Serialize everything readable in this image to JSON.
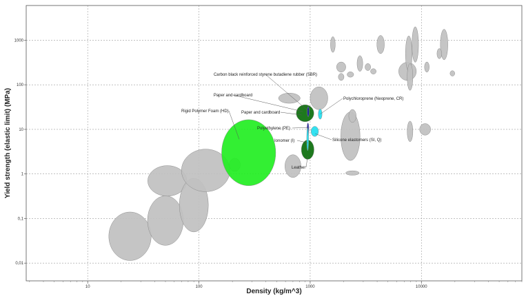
{
  "chart_data": {
    "type": "scatter",
    "title": "",
    "xlabel": "Density (kg/m^3)",
    "ylabel": "Yield strength (elastic limit) (MPa)",
    "x_scale": "log",
    "y_scale": "log",
    "xlim": [
      2.8,
      80000
    ],
    "ylim": [
      0.004,
      6000
    ],
    "x_ticks": [
      10,
      100,
      1000,
      10000
    ],
    "x_tick_labels": [
      "10",
      "100",
      "1000",
      "10000"
    ],
    "y_ticks": [
      0.01,
      0.1,
      1,
      10,
      100,
      1000
    ],
    "y_tick_labels": [
      "0,01",
      "0,1",
      "1",
      "10",
      "100",
      "1000"
    ],
    "grid": true,
    "series": [
      {
        "color": "#c0c0c0",
        "points": [
          {
            "x": 24,
            "y": 0.04,
            "dx": 1.55,
            "dy": 3.5
          },
          {
            "x": 50,
            "y": 0.09,
            "dx": 1.45,
            "dy": 3.6
          },
          {
            "x": 52,
            "y": 0.7,
            "dx": 1.5,
            "dy": 2.2
          },
          {
            "x": 90,
            "y": 0.2,
            "dx": 1.35,
            "dy": 4.0
          },
          {
            "x": 115,
            "y": 1.2,
            "dx": 1.65,
            "dy": 3.0
          },
          {
            "x": 210,
            "y": 1.6,
            "dx": 1.12,
            "dy": 1.4
          },
          {
            "x": 700,
            "y": 1.5,
            "dx": 1.18,
            "dy": 1.8
          },
          {
            "x": 650,
            "y": 50,
            "dx": 1.25,
            "dy": 1.3
          },
          {
            "x": 1200,
            "y": 50,
            "dx": 1.2,
            "dy": 1.8
          },
          {
            "x": 2300,
            "y": 7,
            "dx": 1.22,
            "dy": 3.5
          },
          {
            "x": 2400,
            "y": 1.05,
            "dx": 1.15,
            "dy": 1.12
          },
          {
            "x": 2400,
            "y": 20,
            "dx": 1.08,
            "dy": 1.4
          },
          {
            "x": 1900,
            "y": 250,
            "dx": 1.1,
            "dy": 1.3
          },
          {
            "x": 1900,
            "y": 150,
            "dx": 1.06,
            "dy": 1.2
          },
          {
            "x": 2300,
            "y": 170,
            "dx": 1.07,
            "dy": 1.15
          },
          {
            "x": 1600,
            "y": 800,
            "dx": 1.05,
            "dy": 1.5
          },
          {
            "x": 2800,
            "y": 300,
            "dx": 1.06,
            "dy": 1.5
          },
          {
            "x": 3300,
            "y": 250,
            "dx": 1.06,
            "dy": 1.2
          },
          {
            "x": 3700,
            "y": 200,
            "dx": 1.06,
            "dy": 1.15
          },
          {
            "x": 4300,
            "y": 800,
            "dx": 1.08,
            "dy": 1.6
          },
          {
            "x": 7500,
            "y": 200,
            "dx": 1.2,
            "dy": 1.6
          },
          {
            "x": 7700,
            "y": 500,
            "dx": 1.07,
            "dy": 2.5
          },
          {
            "x": 7900,
            "y": 150,
            "dx": 1.06,
            "dy": 2.0
          },
          {
            "x": 8800,
            "y": 800,
            "dx": 1.07,
            "dy": 2.5
          },
          {
            "x": 7900,
            "y": 9,
            "dx": 1.06,
            "dy": 1.7
          },
          {
            "x": 10800,
            "y": 10,
            "dx": 1.12,
            "dy": 1.35
          },
          {
            "x": 11200,
            "y": 250,
            "dx": 1.05,
            "dy": 1.3
          },
          {
            "x": 16000,
            "y": 800,
            "dx": 1.08,
            "dy": 2.2
          },
          {
            "x": 14500,
            "y": 500,
            "dx": 1.05,
            "dy": 1.3
          },
          {
            "x": 19000,
            "y": 180,
            "dx": 1.05,
            "dy": 1.15
          }
        ]
      },
      {
        "name": "Rigid Polymer Foam (HD)",
        "color": "#22ee22",
        "points": [
          {
            "x": 280,
            "y": 3,
            "dx": 1.75,
            "dy": 5.5
          }
        ]
      },
      {
        "name": "Paper and cardboard",
        "color": "#0b6e0b",
        "points": [
          {
            "x": 900,
            "y": 23,
            "dx": 1.2,
            "dy": 1.55
          }
        ]
      },
      {
        "name": "Leather",
        "color": "#0b6e0b",
        "points": [
          {
            "x": 950,
            "y": 3.5,
            "dx": 1.14,
            "dy": 1.65
          }
        ]
      },
      {
        "name": "Polyethylene (PE)",
        "color": "#1a1aa8",
        "points": [
          {
            "x": 955,
            "y": 10,
            "dx": 1.02,
            "dy": 1.4
          }
        ]
      },
      {
        "name": "Ionomer (I)",
        "color": "#22e0f0",
        "points": [
          {
            "x": 950,
            "y": 6,
            "dx": 1.02,
            "dy": 1.8
          }
        ]
      },
      {
        "name": "Carbon black reinforced styrene butadiene rubber (SBR)",
        "color": "#1a1aa8",
        "points": [
          {
            "x": 960,
            "y": 25,
            "dx": 1.02,
            "dy": 1.3
          }
        ]
      },
      {
        "name": "Polychloroprene (Neoprene, CR)",
        "color": "#22e0f0",
        "points": [
          {
            "x": 1230,
            "y": 22,
            "dx": 1.04,
            "dy": 1.3
          }
        ]
      },
      {
        "name": "Silicone elastomers (SI, Q)",
        "color": "#22e0f0",
        "points": [
          {
            "x": 1100,
            "y": 9,
            "dx": 1.08,
            "dy": 1.3
          }
        ]
      }
    ],
    "annotations": [
      {
        "text": "Carbon black reinforced styrene butadiene rubber (SBR)",
        "x": 960,
        "y": 26
      },
      {
        "text": "Paper and cardboard",
        "x": 860,
        "y": 25
      },
      {
        "text": "Polychloroprene (Neoprene, CR)",
        "x": 1230,
        "y": 22
      },
      {
        "text": "Paper and cardboard",
        "x": 840,
        "y": 21
      },
      {
        "text": "Rigid Polymer Foam (HD)",
        "x": 230,
        "y": 6
      },
      {
        "text": "Polyethylene (PE)",
        "x": 955,
        "y": 11
      },
      {
        "text": "Silicone elastomers (SI, Q)",
        "x": 1110,
        "y": 8
      },
      {
        "text": "Ionomer (I)",
        "x": 950,
        "y": 5
      },
      {
        "text": "Leather",
        "x": 950,
        "y": 2.5
      }
    ]
  }
}
